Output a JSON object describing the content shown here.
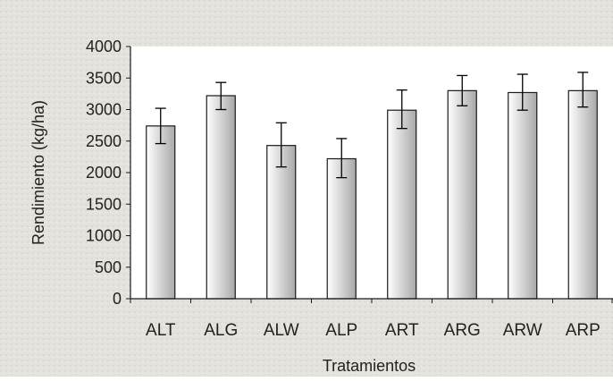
{
  "chart_data": {
    "type": "bar",
    "title": "",
    "xlabel": "Tratamientos",
    "ylabel": "Rendimiento (kg/ha)",
    "categories": [
      "ALT",
      "ALG",
      "ALW",
      "ALP",
      "ART",
      "ARG",
      "ARW",
      "ARP"
    ],
    "values": [
      2740,
      3220,
      2430,
      2220,
      2990,
      3300,
      3270,
      3300
    ],
    "error_low": [
      2460,
      3000,
      2090,
      1920,
      2700,
      3060,
      2990,
      3040
    ],
    "error_high": [
      3020,
      3430,
      2790,
      2540,
      3310,
      3540,
      3560,
      3590
    ],
    "ylim": [
      0,
      4000
    ],
    "yticks": [
      0,
      500,
      1000,
      1500,
      2000,
      2500,
      3000,
      3500,
      4000
    ],
    "grid": false,
    "legend": "none"
  },
  "colors": {
    "plot_background": "#ffffff",
    "figure_background": "#e7e3de",
    "bar_fill_light": "#ffffff",
    "bar_fill_dark": "#a8a8a8",
    "bar_stroke": "#1a1a1a",
    "axis": "#1a1a1a"
  }
}
